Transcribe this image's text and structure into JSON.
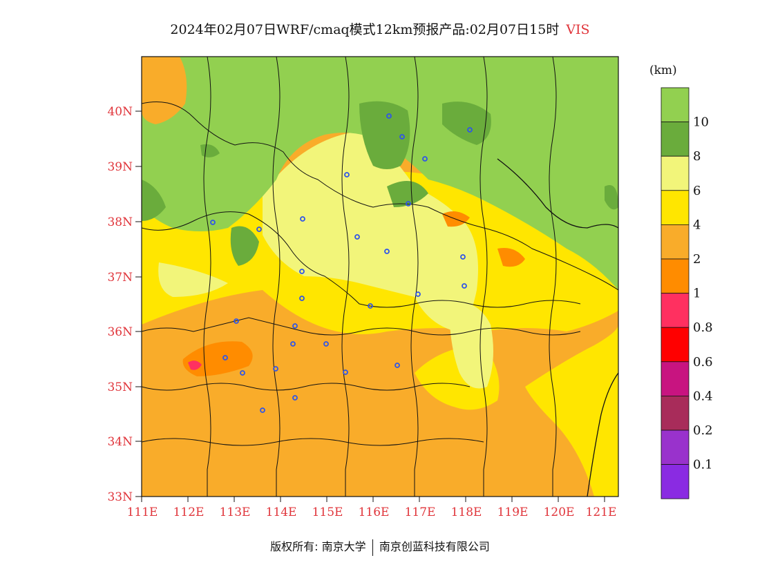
{
  "header": {
    "title": "2024年02月07日WRF/cmaq模式12km预报产品:02月07日15时",
    "variable": "VIS"
  },
  "map": {
    "lat_labels": [
      "40N",
      "39N",
      "38N",
      "37N",
      "36N",
      "35N",
      "34N",
      "33N"
    ],
    "lon_labels": [
      "111E",
      "112E",
      "113E",
      "114E",
      "115E",
      "116E",
      "117E",
      "118E",
      "119E",
      "120E",
      "121E"
    ]
  },
  "legend": {
    "unit": "(km)",
    "labels": [
      "10",
      "8",
      "6",
      "4",
      "2",
      "1",
      "0.8",
      "0.6",
      "0.4",
      "0.2",
      "0.1"
    ],
    "colors": [
      "#92d050",
      "#6aac3c",
      "#f2f57a",
      "#ffe600",
      "#f9ac2a",
      "#ff8c00",
      "#ff3060",
      "#ff0000",
      "#c81480",
      "#a82c5a",
      "#9932cc",
      "#8a2be2"
    ]
  },
  "footer": {
    "copyright_label": "版权所有:",
    "org1": "南京大学",
    "org2": "南京创蓝科技有限公司"
  },
  "colors": {
    "axis_label": "#e0343a",
    "station_marker": "#2f55e8"
  }
}
